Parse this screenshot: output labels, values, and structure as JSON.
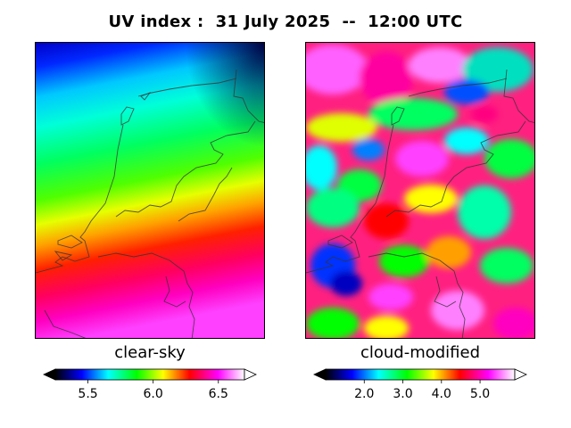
{
  "title": "UV index :  31 July 2025  --  12:00 UTC",
  "panels": [
    {
      "label": "clear-sky",
      "colorbar_ticks": [
        "5.5",
        "6.0",
        "6.5"
      ],
      "tick_values": [
        5.5,
        6.0,
        6.5
      ],
      "range": [
        5.25,
        6.7
      ]
    },
    {
      "label": "cloud-modified",
      "colorbar_ticks": [
        "2.0",
        "3.0",
        "4.0",
        "5.0"
      ],
      "tick_values": [
        2.0,
        3.0,
        4.0,
        5.0
      ],
      "range": [
        1.0,
        5.9
      ]
    }
  ],
  "colormap": [
    "#000000",
    "#0000ff",
    "#00ffff",
    "#00ff00",
    "#ffff00",
    "#ff0000",
    "#ff00ff",
    "#ffffff"
  ]
}
